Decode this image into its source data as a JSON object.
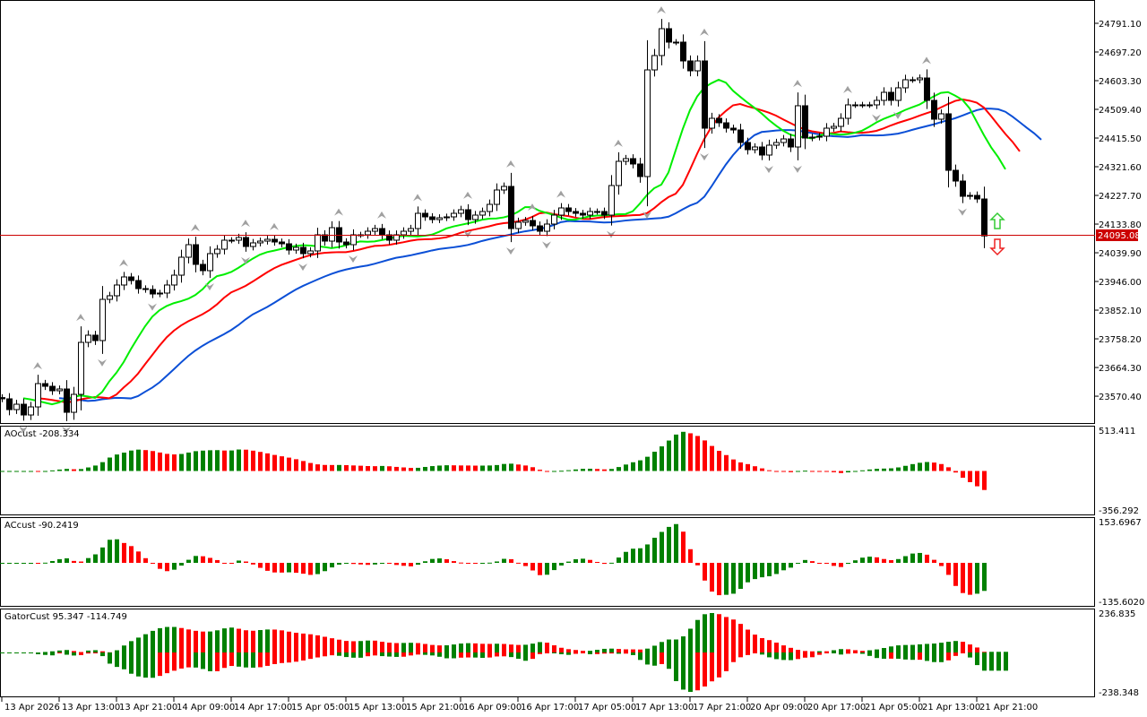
{
  "colors": {
    "bull_body": "#ffffff",
    "bear_body": "#000000",
    "jaw": "#0b4fd6",
    "teeth": "#ff0000",
    "lips": "#00ee00",
    "up_bar": "#008000",
    "down_bar": "#ff0000",
    "price_line": "#cc0000",
    "fractal": "#a0a0a0"
  },
  "price_axis": {
    "ticks": [
      "24791.10",
      "24697.20",
      "24603.30",
      "24509.40",
      "24415.50",
      "24321.60",
      "24227.70",
      "24133.80",
      "24039.90",
      "23946.00",
      "23852.10",
      "23758.20",
      "23664.30",
      "23570.40"
    ],
    "current_price": "24095.08"
  },
  "time_axis": {
    "labels": [
      "13 Apr 2026",
      "13 Apr 13:00",
      "13 Apr 21:00",
      "14 Apr 09:00",
      "14 Apr 17:00",
      "15 Apr 05:00",
      "15 Apr 13:00",
      "15 Apr 21:00",
      "16 Apr 09:00",
      "16 Apr 17:00",
      "17 Apr 05:00",
      "17 Apr 13:00",
      "17 Apr 21:00",
      "20 Apr 09:00",
      "20 Apr 17:00",
      "21 Apr 05:00",
      "21 Apr 13:00",
      "21 Apr 21:00"
    ]
  },
  "panels": [
    {
      "name": "AOcust",
      "value": "-208.334",
      "max": "513.411",
      "min": "-356.292"
    },
    {
      "name": "ACcust",
      "value": "-90.2419",
      "max": "153.6967",
      "min": "-135.6020"
    },
    {
      "name": "GatorCust",
      "value": "95.347 -114.749",
      "max": "236.835",
      "min": "-238.348"
    }
  ],
  "chart_data": {
    "type": "candlestick",
    "title": "",
    "ylim": [
      23520,
      24800
    ],
    "close": [
      23561.8,
      23526.5,
      23544.1,
      23508.9,
      23535.3,
      23611.6,
      23602.8,
      23588.2,
      23594.0,
      23517.7,
      23576.4,
      23746.6,
      23770.1,
      23752.5,
      23887.4,
      23899.2,
      23934.4,
      23960.8,
      23949.0,
      23922.6,
      23919.7,
      23905.0,
      23908.0,
      23934.4,
      23966.6,
      24025.3,
      24066.4,
      24001.9,
      23981.3,
      24037.1,
      24051.7,
      24081.1,
      24081.1,
      24089.9,
      24060.5,
      24072.3,
      24078.1,
      24084.0,
      24075.2,
      24069.3,
      24048.8,
      24057.6,
      24037.1,
      24045.9,
      24098.7,
      24078.1,
      24122.1,
      24075.2,
      24066.4,
      24098.7,
      24098.7,
      24110.4,
      24119.2,
      24098.7,
      24081.1,
      24098.7,
      24110.4,
      24119.2,
      24169.1,
      24157.4,
      24148.6,
      24154.4,
      24157.4,
      24169.1,
      24180.8,
      24148.6,
      24163.2,
      24175.0,
      24198.4,
      24245.4,
      24257.1,
      24119.2,
      24139.8,
      24145.6,
      24128.0,
      24110.4,
      24133.9,
      24163.2,
      24186.7,
      24175.0,
      24169.1,
      24163.2,
      24175.0,
      24175.0,
      24163.2,
      24260.0,
      24339.3,
      24348.1,
      24330.5,
      24289.4,
      24638.5,
      24685.5,
      24773.5,
      24729.5,
      24729.5,
      24667.9,
      24635.6,
      24667.9,
      24447.8,
      24480.1,
      24465.4,
      24447.8,
      24442.0,
      24400.9,
      24377.4,
      24386.2,
      24359.8,
      24392.1,
      24400.9,
      24412.6,
      24386.2,
      24521.2,
      24415.5,
      24418.5,
      24421.4,
      24447.8,
      24453.7,
      24480.1,
      24524.1,
      24524.1,
      24524.1,
      24524.1,
      24538.8,
      24565.2,
      24538.8,
      24579.9,
      24606.3,
      24606.3,
      24612.1,
      24538.8,
      24477.2,
      24494.8,
      24309.9,
      24274.7,
      24224.8,
      24227.7,
      24216.0,
      24095.08
    ]
  }
}
